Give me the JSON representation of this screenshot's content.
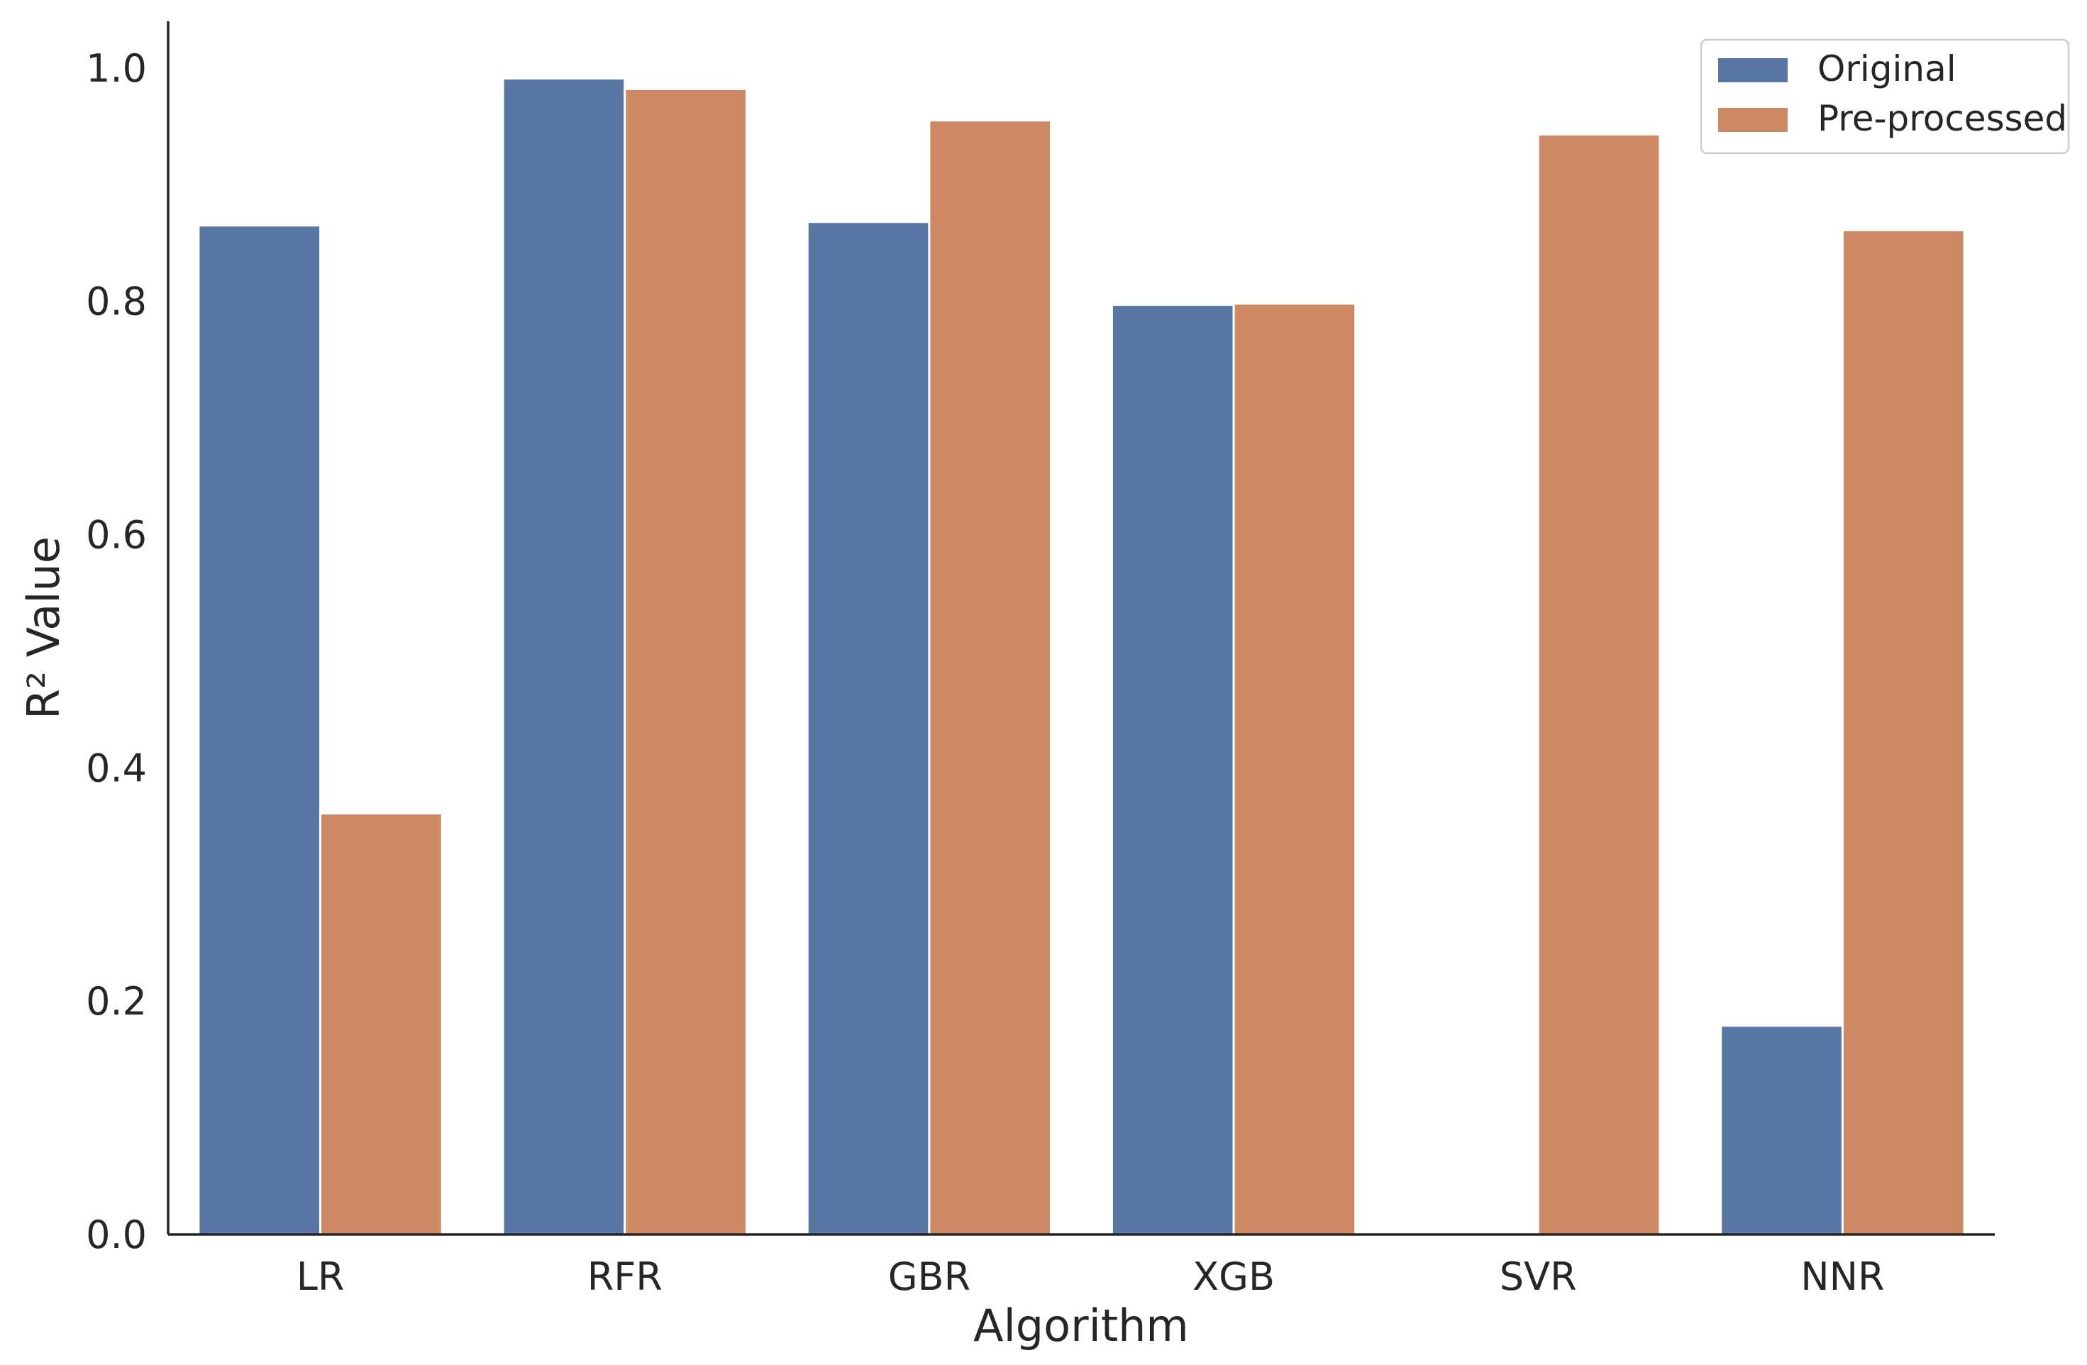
{
  "chart_data": {
    "type": "bar",
    "title": "",
    "xlabel": "Algorithm",
    "ylabel": "R² Value",
    "categories": [
      "LR",
      "RFR",
      "GBR",
      "XGB",
      "SVR",
      "NNR"
    ],
    "series": [
      {
        "name": "Original",
        "color": "#5975a4",
        "values": [
          0.865,
          0.991,
          0.868,
          0.797,
          0.0,
          0.179
        ]
      },
      {
        "name": "Pre-processed",
        "color": "#cc8963",
        "values": [
          0.361,
          0.982,
          0.955,
          0.798,
          0.943,
          0.861
        ]
      }
    ],
    "ylim": [
      0,
      1.04
    ],
    "yticks": [
      0.0,
      0.2,
      0.4,
      0.6,
      0.8,
      1.0
    ],
    "ytick_labels": [
      "0.0",
      "0.2",
      "0.4",
      "0.6",
      "0.8",
      "1.0"
    ],
    "grid": false,
    "legend_position": "top-right"
  }
}
